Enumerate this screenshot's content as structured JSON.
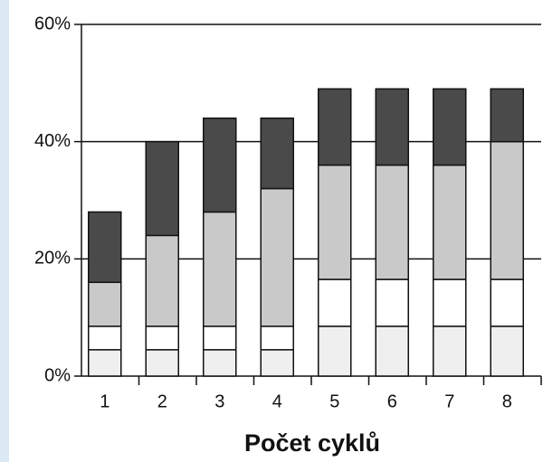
{
  "chart_data": {
    "type": "stacked_bar",
    "xlabel": "Počet cyklů",
    "categories": [
      "1",
      "2",
      "3",
      "4",
      "5",
      "6",
      "7",
      "8"
    ],
    "series": [
      {
        "color": "#efefef",
        "values": [
          4.5,
          4.5,
          4.5,
          4.5,
          8.5,
          8.5,
          8.5,
          8.5
        ]
      },
      {
        "color": "#ffffff",
        "values": [
          4,
          4,
          4,
          4,
          8,
          8,
          8,
          8
        ]
      },
      {
        "color": "#c9c9c9",
        "values": [
          7.5,
          15.5,
          19.5,
          23.5,
          19.5,
          19.5,
          19.5,
          23.5
        ]
      },
      {
        "color": "#4a4a4a",
        "values": [
          12,
          16,
          16,
          12,
          13,
          13,
          13,
          9
        ]
      }
    ],
    "ylim": [
      0,
      60
    ],
    "yticks": [
      {
        "value": 0,
        "label": "0%"
      },
      {
        "value": 20,
        "label": "20%"
      },
      {
        "value": 40,
        "label": "40%"
      },
      {
        "value": 60,
        "label": "60%"
      }
    ],
    "grid": true
  }
}
